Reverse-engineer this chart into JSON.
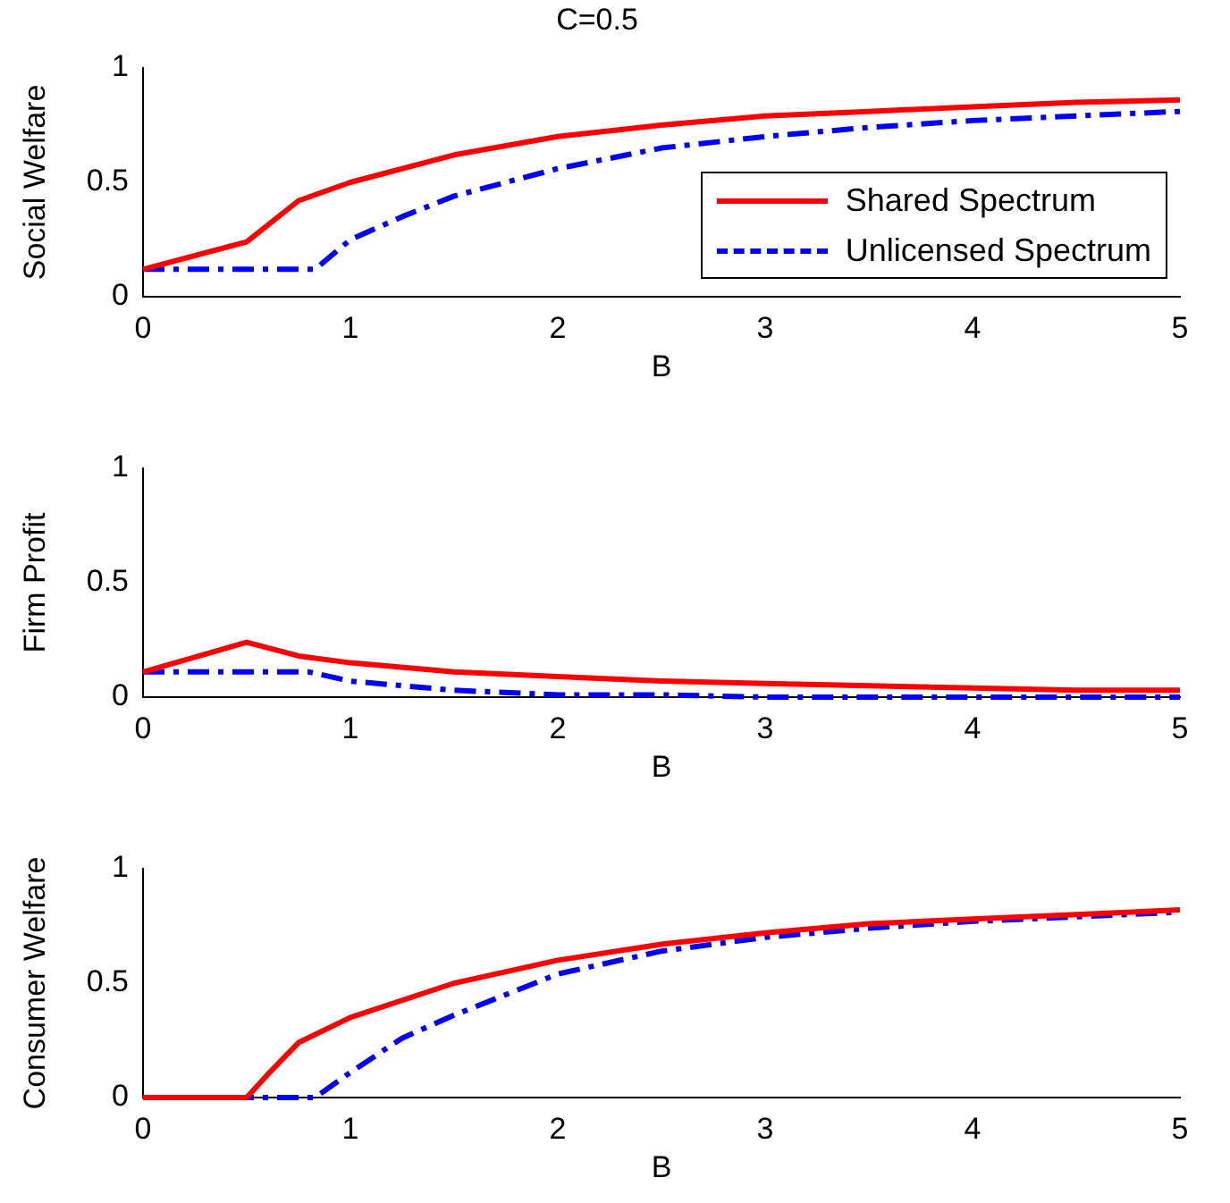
{
  "chart_data": [
    {
      "type": "line",
      "title": "C=0.5",
      "xlabel": "B",
      "ylabel": "Social Welfare",
      "xlim": [
        0,
        5
      ],
      "xticks": [
        0,
        1,
        2,
        3,
        4,
        5
      ],
      "ylim": [
        0,
        1
      ],
      "yticks": [
        0,
        0.5,
        1
      ],
      "grid": false,
      "legend": "bottom right",
      "marker": "none",
      "series": [
        {
          "name": "Shared Spectrum",
          "color": "#ff0000",
          "line_style": "solid",
          "x": [
            0,
            0.5,
            0.75,
            1,
            1.5,
            2,
            2.5,
            3,
            3.5,
            4,
            4.5,
            5
          ],
          "values": [
            0.12,
            0.24,
            0.42,
            0.5,
            0.62,
            0.7,
            0.75,
            0.79,
            0.81,
            0.83,
            0.85,
            0.86
          ]
        },
        {
          "name": "Unlicensed Spectrum",
          "color": "#0000ff",
          "line_style": "dashed",
          "x": [
            0,
            0.83,
            1,
            1.25,
            1.5,
            2,
            2.5,
            3,
            3.5,
            4,
            4.5,
            5
          ],
          "values": [
            0.12,
            0.12,
            0.25,
            0.35,
            0.44,
            0.56,
            0.65,
            0.7,
            0.74,
            0.77,
            0.79,
            0.81
          ]
        }
      ]
    },
    {
      "type": "line",
      "xlabel": "B",
      "ylabel": "Firm Profit",
      "xlim": [
        0,
        5
      ],
      "xticks": [
        0,
        1,
        2,
        3,
        4,
        5
      ],
      "ylim": [
        0,
        1
      ],
      "yticks": [
        0,
        0.5,
        1
      ],
      "grid": false,
      "marker": "none",
      "series": [
        {
          "color": "#ff0000",
          "line_style": "solid",
          "x": [
            0,
            0.5,
            0.75,
            1,
            1.5,
            2,
            2.5,
            3,
            3.5,
            4,
            4.5,
            5
          ],
          "values": [
            0.11,
            0.24,
            0.18,
            0.15,
            0.11,
            0.09,
            0.07,
            0.06,
            0.05,
            0.04,
            0.03,
            0.03
          ]
        },
        {
          "color": "#0000ff",
          "line_style": "dashed",
          "x": [
            0,
            0.8,
            1,
            1.5,
            2,
            2.5,
            3,
            4,
            5
          ],
          "values": [
            0.11,
            0.11,
            0.07,
            0.03,
            0.01,
            0.01,
            0,
            0,
            0
          ]
        }
      ]
    },
    {
      "type": "line",
      "xlabel": "B",
      "ylabel": "Consumer Welfare",
      "xlim": [
        0,
        5
      ],
      "xticks": [
        0,
        1,
        2,
        3,
        4,
        5
      ],
      "ylim": [
        0,
        1
      ],
      "yticks": [
        0,
        0.5,
        1
      ],
      "grid": false,
      "marker": "none",
      "series": [
        {
          "color": "#ff0000",
          "line_style": "solid",
          "x": [
            0,
            0.5,
            0.6,
            0.75,
            1,
            1.5,
            2,
            2.5,
            3,
            3.5,
            4,
            4.5,
            5
          ],
          "values": [
            0,
            0,
            0.1,
            0.24,
            0.35,
            0.5,
            0.6,
            0.67,
            0.72,
            0.76,
            0.78,
            0.8,
            0.82
          ]
        },
        {
          "color": "#0000ff",
          "line_style": "dashed",
          "x": [
            0,
            0.83,
            1,
            1.25,
            1.5,
            2,
            2.5,
            3,
            3.5,
            4,
            4.5,
            5
          ],
          "values": [
            0,
            0,
            0.11,
            0.26,
            0.36,
            0.54,
            0.64,
            0.7,
            0.74,
            0.77,
            0.79,
            0.81
          ]
        }
      ]
    }
  ]
}
